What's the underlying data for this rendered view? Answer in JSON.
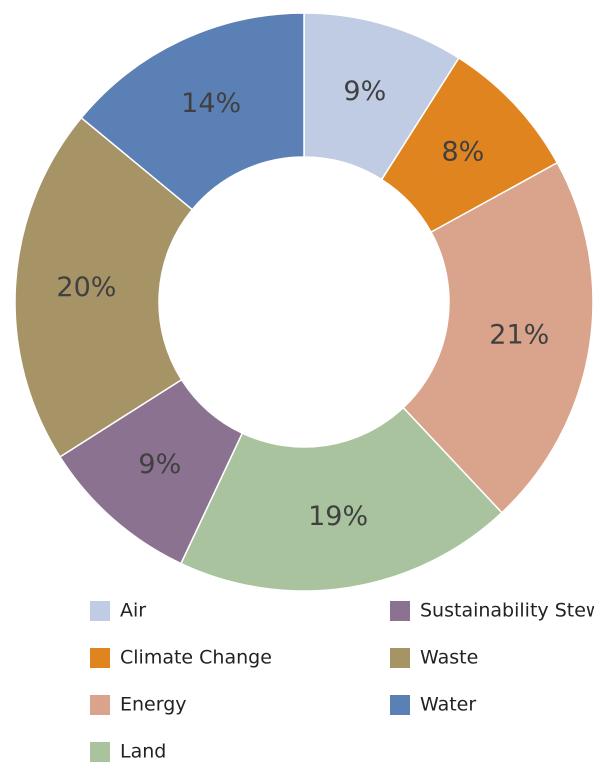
{
  "chart_data": {
    "type": "donut",
    "categories": [
      "Air",
      "Climate Change",
      "Energy",
      "Land",
      "Sustainability Stewardship",
      "Waste",
      "Water"
    ],
    "values": [
      9,
      8,
      21,
      19,
      9,
      20,
      14
    ],
    "value_labels": [
      "9%",
      "8%",
      "21%",
      "19%",
      "9%",
      "20%",
      "14%"
    ],
    "colors": [
      "#c0cce3",
      "#e0841f",
      "#d9a38c",
      "#a8c39e",
      "#8b7291",
      "#a69467",
      "#5b80b5"
    ],
    "legend": "bottom"
  }
}
